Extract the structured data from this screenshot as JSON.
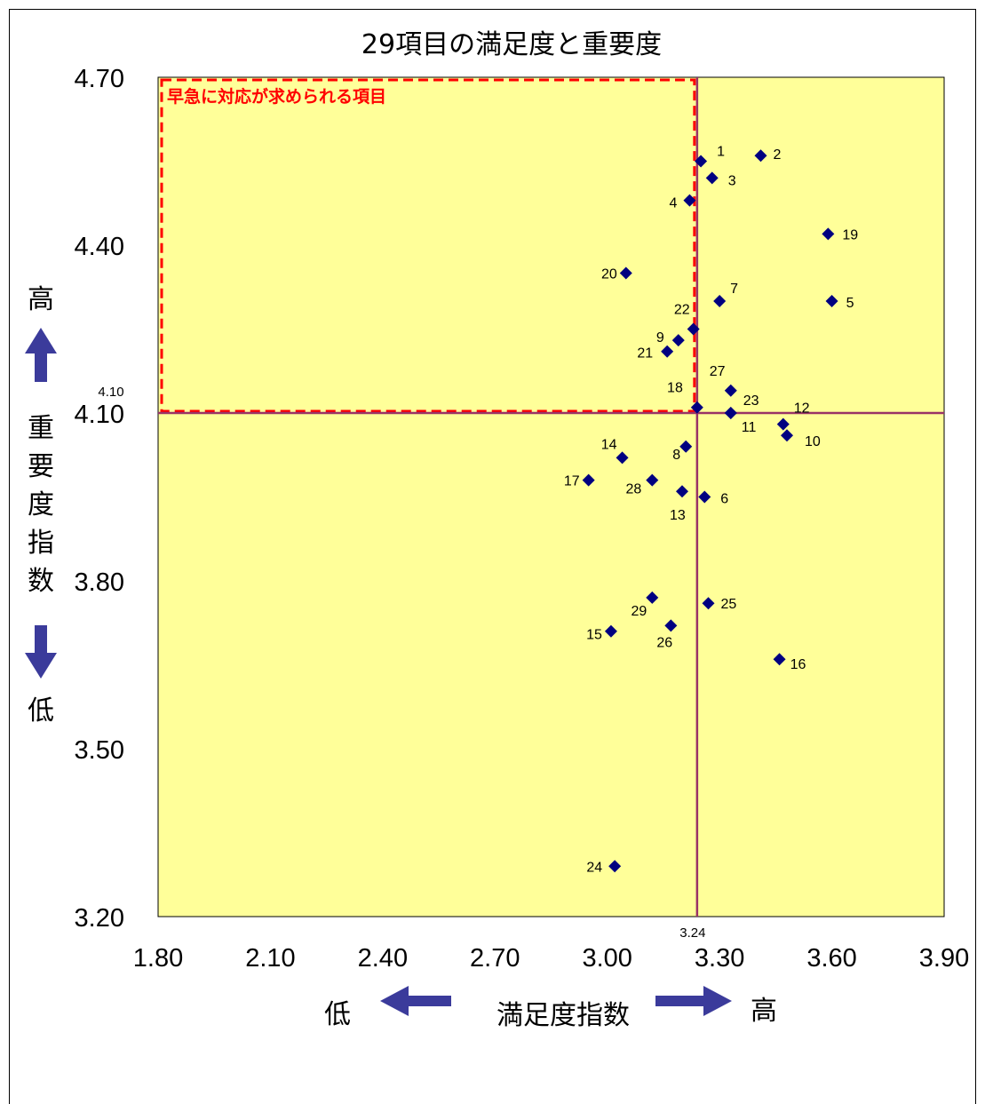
{
  "chart_data": {
    "type": "scatter",
    "title": "29項目の満足度と重要度",
    "xlabel": "満足度指数",
    "ylabel": "重要度指数",
    "x_low_label": "低",
    "x_high_label": "高",
    "y_low_label": "低",
    "y_high_label": "高",
    "xlim": [
      1.8,
      3.9
    ],
    "ylim": [
      3.2,
      4.7
    ],
    "x_ticks": [
      "1.80",
      "2.10",
      "2.40",
      "2.70",
      "3.00",
      "3.30",
      "3.60",
      "3.90"
    ],
    "y_ticks": [
      "3.20",
      "3.50",
      "3.80",
      "4.10",
      "4.40",
      "4.70"
    ],
    "reference_x": {
      "value": 3.24,
      "label": "3.24"
    },
    "reference_y": {
      "value": 4.1,
      "label": "4.10"
    },
    "region_label": "早急に対応が求められる項目",
    "plot_background": "#ffff99",
    "marker_color": "#000080",
    "reference_line_color": "#993366",
    "region_color": "#ff0000",
    "arrow_color": "#3b3b9b",
    "grid": false,
    "points": [
      {
        "label": "1",
        "x": 3.25,
        "y": 4.55
      },
      {
        "label": "2",
        "x": 3.41,
        "y": 4.56
      },
      {
        "label": "3",
        "x": 3.28,
        "y": 4.52
      },
      {
        "label": "4",
        "x": 3.22,
        "y": 4.48
      },
      {
        "label": "5",
        "x": 3.6,
        "y": 4.3
      },
      {
        "label": "6",
        "x": 3.26,
        "y": 3.95
      },
      {
        "label": "7",
        "x": 3.3,
        "y": 4.3
      },
      {
        "label": "8",
        "x": 3.21,
        "y": 4.04
      },
      {
        "label": "9",
        "x": 3.19,
        "y": 4.23
      },
      {
        "label": "10",
        "x": 3.48,
        "y": 4.06
      },
      {
        "label": "11",
        "x": 3.33,
        "y": 4.1
      },
      {
        "label": "12",
        "x": 3.47,
        "y": 4.08
      },
      {
        "label": "13",
        "x": 3.2,
        "y": 3.96
      },
      {
        "label": "14",
        "x": 3.04,
        "y": 4.02
      },
      {
        "label": "15",
        "x": 3.01,
        "y": 3.71
      },
      {
        "label": "16",
        "x": 3.46,
        "y": 3.66
      },
      {
        "label": "17",
        "x": 2.95,
        "y": 3.98
      },
      {
        "label": "18",
        "x": 3.24,
        "y": 4.11
      },
      {
        "label": "19",
        "x": 3.59,
        "y": 4.42
      },
      {
        "label": "20",
        "x": 3.05,
        "y": 4.35
      },
      {
        "label": "21",
        "x": 3.16,
        "y": 4.21
      },
      {
        "label": "22",
        "x": 3.23,
        "y": 4.25
      },
      {
        "label": "23",
        "x": 3.33,
        "y": 4.1
      },
      {
        "label": "24",
        "x": 3.02,
        "y": 3.29
      },
      {
        "label": "25",
        "x": 3.27,
        "y": 3.76
      },
      {
        "label": "26",
        "x": 3.17,
        "y": 3.72
      },
      {
        "label": "27",
        "x": 3.33,
        "y": 4.14
      },
      {
        "label": "28",
        "x": 3.12,
        "y": 3.98
      },
      {
        "label": "29",
        "x": 3.12,
        "y": 3.77
      }
    ]
  }
}
